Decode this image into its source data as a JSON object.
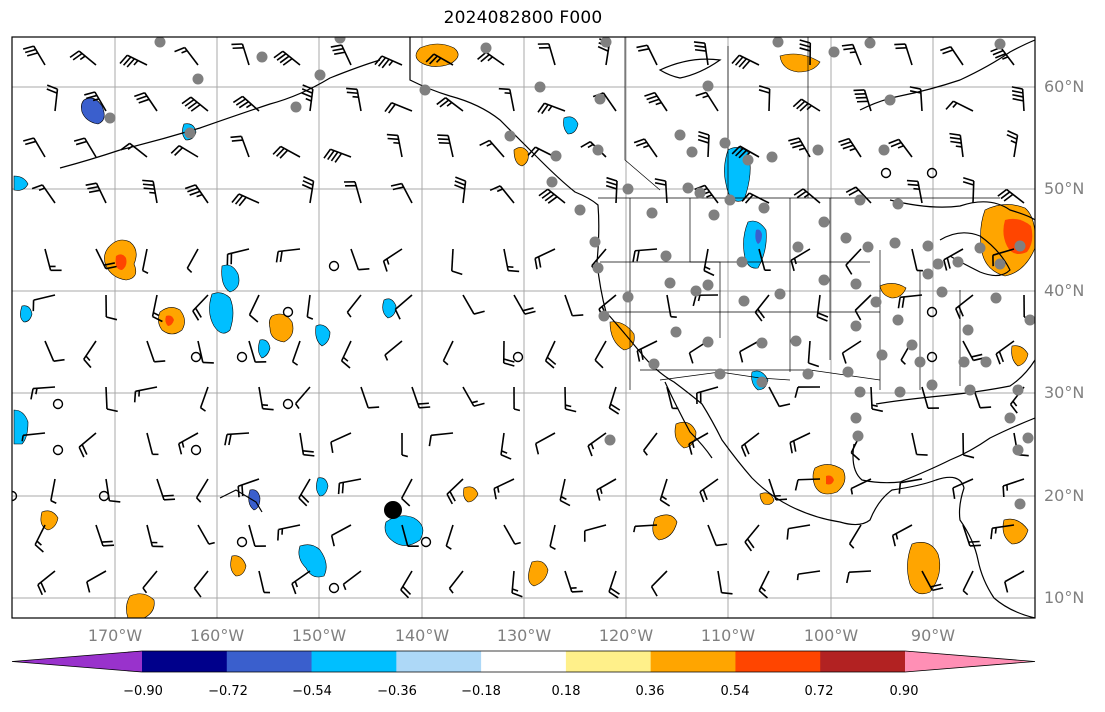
{
  "title": "2024082800 F000",
  "lat_labels": [
    "60°N",
    "50°N",
    "40°N",
    "30°N",
    "20°N",
    "10°N"
  ],
  "lon_labels": [
    "170°W",
    "160°W",
    "150°W",
    "140°W",
    "130°W",
    "120°W",
    "110°W",
    "100°W",
    "90°W"
  ],
  "colorbar": {
    "colors": [
      "#9932cc",
      "#00008b",
      "#3a5fcd",
      "#00bfff",
      "#add8f7",
      "#ffffff",
      "#fff08a",
      "#ffa500",
      "#ff4500",
      "#b22222",
      "#ff8fb5"
    ],
    "tick_labels": [
      "−0.90",
      "−0.72",
      "−0.54",
      "−0.36",
      "−0.18",
      "0.18",
      "0.36",
      "0.54",
      "0.72",
      "0.90"
    ]
  },
  "colors": {
    "grid": "#a8a8a8",
    "coast": "#000000",
    "station_gray": "#808080"
  }
}
